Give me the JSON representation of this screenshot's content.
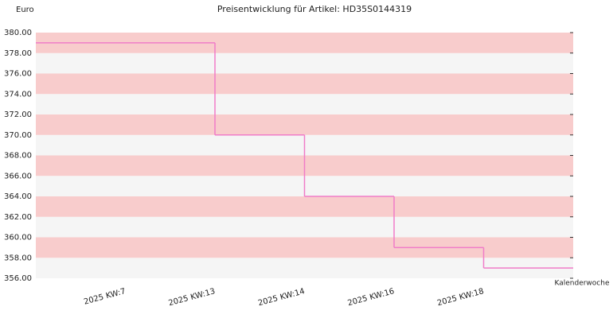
{
  "chart_data": {
    "type": "step",
    "title": "Preisentwicklung für Artikel: HD35S0144319",
    "y_label": "Euro",
    "x_label": "Kalenderwoche",
    "categories": [
      null,
      "2025 KW:7",
      "2025 KW:13",
      "2025 KW:14",
      "2025 KW:16",
      "2025 KW:18"
    ],
    "values": [
      379,
      379,
      370,
      364,
      359,
      357
    ],
    "color": "#f07cc8",
    "band_colors": [
      "#f8cccc",
      "#f5f5f5"
    ],
    "ylim": [
      356,
      380
    ],
    "yticks": [
      {
        "value": 356,
        "label": "356.00"
      },
      {
        "value": 358,
        "label": "358.00"
      },
      {
        "value": 360,
        "label": "360.00"
      },
      {
        "value": 362,
        "label": "362.00"
      },
      {
        "value": 364,
        "label": "364.00"
      },
      {
        "value": 366,
        "label": "366.00"
      },
      {
        "value": 368,
        "label": "368.00"
      },
      {
        "value": 370,
        "label": "370.00"
      },
      {
        "value": 372,
        "label": "372.00"
      },
      {
        "value": 374,
        "label": "374.00"
      },
      {
        "value": 376,
        "label": "376.00"
      },
      {
        "value": 378,
        "label": "378.00"
      },
      {
        "value": 380,
        "label": "380.00"
      }
    ]
  }
}
